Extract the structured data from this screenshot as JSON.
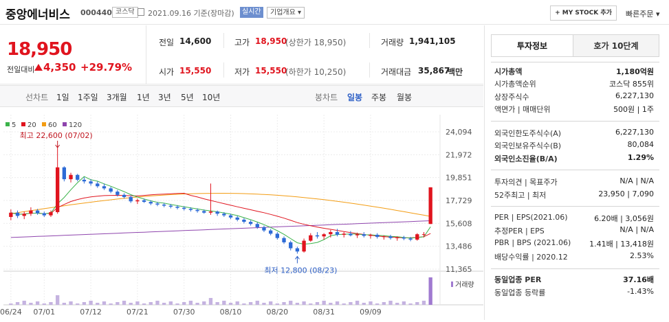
{
  "header": {
    "stock_name": "중앙에너비스",
    "stock_code": "000440",
    "market_badge": "코스닥",
    "date_text": "2021.09.16 기준(장마감)",
    "live_label": "실시간",
    "company_label": "기업개요 ▾",
    "mystock_label": "+ MY STOCK 추가",
    "quick_order_label": "빠른주문 ▾"
  },
  "summary": {
    "price": "18,950",
    "prev_label": "전일대비",
    "change": "4,350",
    "change_pct": "+29.79%",
    "cells": {
      "open_label": "전일",
      "open_val": "14,600",
      "high_label": "고가",
      "high_val": "18,950",
      "high_sub": "(상한가 18,950)",
      "volume_label": "거래량",
      "volume_val": "1,941,105",
      "start_label": "시가",
      "start_val": "15,550",
      "low_label": "저가",
      "low_val": "15,550",
      "low_sub": "(하한가 10,250)",
      "amount_label": "거래대금",
      "amount_val": "35,867",
      "amount_unit": "백만"
    }
  },
  "toolbar": {
    "line_title": "선차트",
    "line_items": [
      "1일",
      "1주일",
      "3개월",
      "1년",
      "3년",
      "5년",
      "10년"
    ],
    "candle_title": "봉차트",
    "candle_items": [
      "일봉",
      "주봉",
      "월봉"
    ],
    "candle_active": "일봉"
  },
  "chart_data": {
    "type": "candlestick",
    "legend": [
      {
        "name": "5",
        "color": "#3bb34a"
      },
      {
        "name": "20",
        "color": "#e0141e"
      },
      {
        "name": "60",
        "color": "#f39c12"
      },
      {
        "name": "120",
        "color": "#8e44ad"
      }
    ],
    "y_ticks": [
      "24,094",
      "21,972",
      "19,851",
      "17,729",
      "15,608",
      "13,486",
      "11,365"
    ],
    "ylim": [
      11365,
      24094
    ],
    "x_ticks": [
      "06/24",
      "07/01",
      "07/12",
      "07/21",
      "07/30",
      "08/10",
      "08/20",
      "08/31",
      "09/09"
    ],
    "max_annotation": "최고 22,600 (07/02)",
    "min_annotation": "최저 12,800 (08/23)",
    "volume_label": "거래량",
    "candles": [
      [
        16200,
        16900,
        15900,
        16600
      ],
      [
        16600,
        16800,
        16100,
        16300
      ],
      [
        16300,
        16700,
        16000,
        16500
      ],
      [
        16500,
        17100,
        16300,
        16800
      ],
      [
        16800,
        16950,
        16400,
        16550
      ],
      [
        16550,
        16700,
        16200,
        16350
      ],
      [
        16350,
        16800,
        16200,
        16650
      ],
      [
        16650,
        22600,
        16500,
        20800
      ],
      [
        20800,
        20900,
        19500,
        19700
      ],
      [
        19700,
        20300,
        19400,
        20100
      ],
      [
        20100,
        20200,
        19500,
        19650
      ],
      [
        19650,
        19900,
        19300,
        19500
      ],
      [
        19500,
        19700,
        19100,
        19300
      ],
      [
        19300,
        19500,
        18900,
        19050
      ],
      [
        19050,
        19300,
        18700,
        18850
      ],
      [
        18850,
        19000,
        18400,
        18550
      ],
      [
        18550,
        18700,
        18100,
        18250
      ],
      [
        18250,
        18400,
        17900,
        18050
      ],
      [
        18050,
        18200,
        17500,
        17650
      ],
      [
        17650,
        17900,
        17400,
        17750
      ],
      [
        17750,
        17900,
        17500,
        17600
      ],
      [
        17600,
        17750,
        17300,
        17450
      ],
      [
        17450,
        17600,
        17200,
        17350
      ],
      [
        17350,
        17500,
        17100,
        17250
      ],
      [
        17250,
        17400,
        17000,
        17150
      ],
      [
        17150,
        17300,
        16900,
        17050
      ],
      [
        17050,
        17200,
        16800,
        16950
      ],
      [
        16950,
        17100,
        16700,
        16850
      ],
      [
        16850,
        17000,
        16600,
        16750
      ],
      [
        16750,
        16900,
        16500,
        16600
      ],
      [
        16600,
        19300,
        16400,
        16700
      ],
      [
        16700,
        16800,
        16300,
        16500
      ],
      [
        16500,
        16650,
        16200,
        16350
      ],
      [
        16350,
        16500,
        16000,
        16150
      ],
      [
        16150,
        16300,
        15800,
        15950
      ],
      [
        15950,
        16100,
        15600,
        15750
      ],
      [
        15750,
        15900,
        15400,
        15550
      ],
      [
        15550,
        15700,
        15100,
        15250
      ],
      [
        15250,
        15400,
        14800,
        14950
      ],
      [
        14950,
        15100,
        14500,
        14650
      ],
      [
        14650,
        14800,
        14100,
        14250
      ],
      [
        14250,
        14400,
        13700,
        13850
      ],
      [
        13850,
        14000,
        13100,
        13300
      ],
      [
        13300,
        13450,
        12800,
        13000
      ],
      [
        13000,
        14200,
        12900,
        14000
      ],
      [
        14000,
        14700,
        13900,
        14500
      ],
      [
        14500,
        14800,
        14200,
        14400
      ],
      [
        14400,
        14700,
        14100,
        14600
      ],
      [
        14600,
        15000,
        14300,
        14800
      ],
      [
        14800,
        15100,
        14400,
        14550
      ],
      [
        14550,
        14800,
        14300,
        14650
      ],
      [
        14650,
        14900,
        14400,
        14500
      ],
      [
        14500,
        14750,
        14250,
        14600
      ],
      [
        14600,
        14800,
        14300,
        14450
      ],
      [
        14450,
        14650,
        14200,
        14550
      ],
      [
        14550,
        14700,
        14200,
        14350
      ],
      [
        14350,
        14500,
        14100,
        14400
      ],
      [
        14400,
        14550,
        14100,
        14250
      ],
      [
        14250,
        14400,
        14000,
        14300
      ],
      [
        14300,
        14450,
        14050,
        14200
      ],
      [
        14200,
        14350,
        13950,
        14100
      ],
      [
        14100,
        14700,
        14000,
        14600
      ],
      [
        14600,
        14800,
        14300,
        14600
      ],
      [
        15550,
        18950,
        15550,
        18950
      ]
    ]
  },
  "right_panel": {
    "tab_active": "투자정보",
    "tab_inactive": "호가 10단계",
    "group1": [
      {
        "label": "시가총액",
        "value": "1,180억원",
        "bold": true
      },
      {
        "label": "시가총액순위",
        "value": "코스닥 855위"
      },
      {
        "label": "상장주식수",
        "value": "6,227,130"
      },
      {
        "label": "액면가 | 매매단위",
        "value": "500원 | 1주"
      }
    ],
    "group2": [
      {
        "label": "외국인한도주식수(A)",
        "value": "6,227,130"
      },
      {
        "label": "외국인보유주식수(B)",
        "value": "80,084"
      },
      {
        "label": "외국인소진율(B/A)",
        "value": "1.29%",
        "bold": true
      }
    ],
    "group3": [
      {
        "label": "투자의견 | 목표주가",
        "value": "N/A | N/A"
      },
      {
        "label": "52주최고 | 최저",
        "value": "23,950 | 7,090"
      }
    ],
    "group4": [
      {
        "label": "PER | EPS(2021.06)",
        "value": "6.20배 | 3,056원"
      },
      {
        "label": "추정PER | EPS",
        "value": "N/A | N/A"
      },
      {
        "label": "PBR | BPS (2021.06)",
        "value": "1.41배 | 13,418원"
      },
      {
        "label": "배당수익률 | 2020.12",
        "value": "2.53%"
      }
    ],
    "group5": [
      {
        "label": "동일업종 PER",
        "value": "37.16배",
        "bold": true
      },
      {
        "label": "동일업종 등락률",
        "value": "-1.43%",
        "blue": true
      }
    ]
  }
}
